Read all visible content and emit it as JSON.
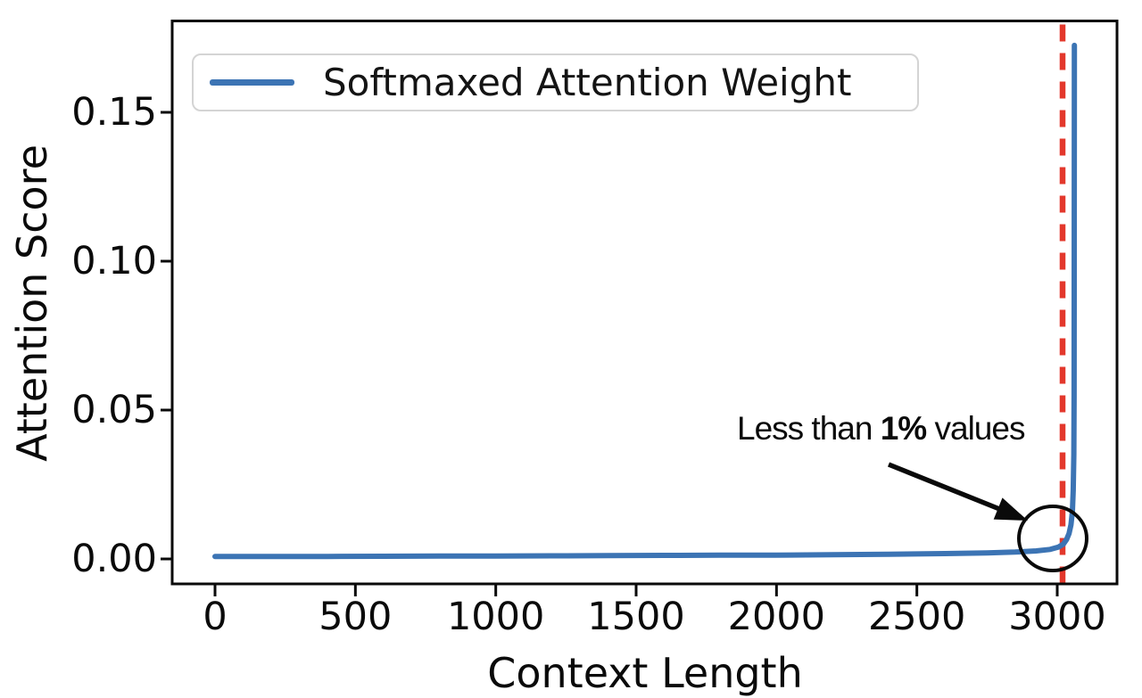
{
  "chart_data": {
    "type": "line",
    "title": "",
    "xlabel": "Context Length",
    "ylabel": "Attention Score",
    "xlim": [
      -150,
      3215
    ],
    "ylim": [
      -0.0085,
      0.181
    ],
    "grid": false,
    "x_ticks": [
      {
        "v": 0,
        "label": "0"
      },
      {
        "v": 500,
        "label": "500"
      },
      {
        "v": 1000,
        "label": "1000"
      },
      {
        "v": 1500,
        "label": "1500"
      },
      {
        "v": 2000,
        "label": "2000"
      },
      {
        "v": 2500,
        "label": "2500"
      },
      {
        "v": 3000,
        "label": "3000"
      }
    ],
    "y_ticks": [
      {
        "v": 0.0,
        "label": "0.00"
      },
      {
        "v": 0.05,
        "label": "0.05"
      },
      {
        "v": 0.1,
        "label": "0.10"
      },
      {
        "v": 0.15,
        "label": "0.15"
      }
    ],
    "legend": {
      "position": "upper left",
      "entries": [
        {
          "label": "Softmaxed Attention Weight",
          "color": "#3c74b4"
        }
      ]
    },
    "series": [
      {
        "name": "Softmaxed Attention Weight",
        "color": "#3c74b4",
        "peak": {
          "x": 3061,
          "y": 0.1725
        },
        "points": [
          [
            0,
            0.0008
          ],
          [
            200,
            0.0008
          ],
          [
            400,
            0.00085
          ],
          [
            600,
            0.0009
          ],
          [
            800,
            0.00095
          ],
          [
            1000,
            0.001
          ],
          [
            1200,
            0.00105
          ],
          [
            1400,
            0.0011
          ],
          [
            1600,
            0.0012
          ],
          [
            1800,
            0.00125
          ],
          [
            2000,
            0.0013
          ],
          [
            2200,
            0.0014
          ],
          [
            2400,
            0.0016
          ],
          [
            2600,
            0.0018
          ],
          [
            2750,
            0.002
          ],
          [
            2850,
            0.0023
          ],
          [
            2925,
            0.0027
          ],
          [
            2975,
            0.0032
          ],
          [
            3005,
            0.004
          ],
          [
            3022,
            0.005
          ],
          [
            3033,
            0.0065
          ],
          [
            3042,
            0.0085
          ],
          [
            3049,
            0.0115
          ],
          [
            3054,
            0.016
          ],
          [
            3057,
            0.023
          ],
          [
            3059,
            0.035
          ],
          [
            3060,
            0.055
          ],
          [
            3060.5,
            0.09
          ],
          [
            3060.8,
            0.13
          ],
          [
            3061,
            0.1725
          ]
        ]
      }
    ],
    "vline": {
      "x": 3019,
      "color": "#e3382c",
      "style": "dashed"
    },
    "annotation": {
      "text_prefix": "Less than ",
      "text_bold": "1%",
      "text_suffix": " values",
      "points_at": "bend of curve at vline"
    },
    "axis_color": "#0a0a0a"
  }
}
